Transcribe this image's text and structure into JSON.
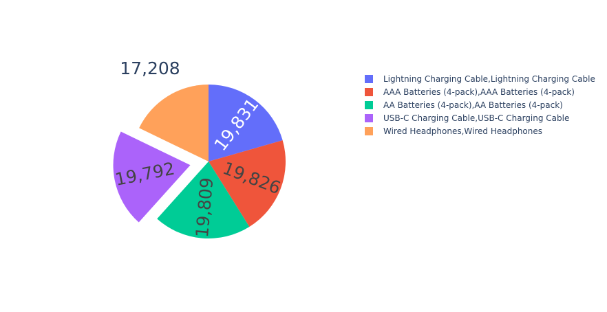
{
  "chart_data": {
    "type": "pie",
    "title": "",
    "labels": [
      "Lightning Charging Cable,Lightning Charging Cable",
      "AAA Batteries (4-pack),AAA Batteries (4-pack)",
      "AA Batteries (4-pack),AA Batteries (4-pack)",
      "USB-C Charging Cable,USB-C Charging Cable",
      "Wired Headphones,Wired Headphones"
    ],
    "values": [
      19831,
      19826,
      19809,
      19792,
      17208
    ],
    "value_labels": [
      "19,831",
      "19,826",
      "19,809",
      "19,792",
      "17,208"
    ],
    "colors": [
      "#636efa",
      "#ef553b",
      "#00cc96",
      "#ab63fa",
      "#ffa15a"
    ],
    "pulled_slice": "USB-C Charging Cable,USB-C Charging Cable",
    "direction": "clockwise",
    "legend_position": "right"
  }
}
